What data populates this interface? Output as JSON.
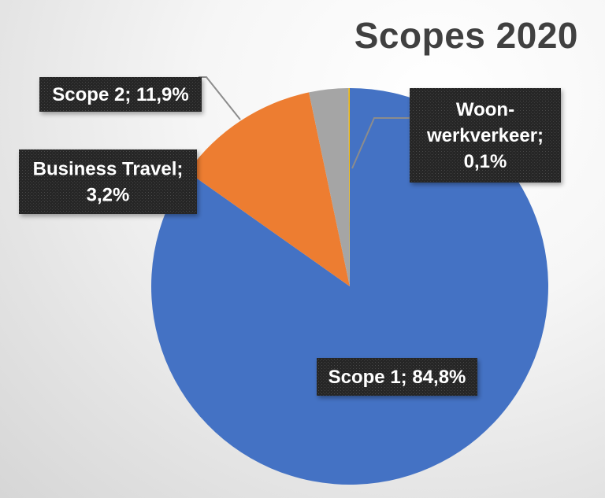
{
  "chart_data": {
    "type": "pie",
    "title": "Scopes 2020",
    "slices": [
      {
        "name": "Scope 1",
        "value": 84.8,
        "label": "Scope 1; 84,8%",
        "color": "#4472C4"
      },
      {
        "name": "Scope 2",
        "value": 11.9,
        "label": "Scope 2; 11,9%",
        "color": "#ED7D31"
      },
      {
        "name": "Business Travel",
        "value": 3.2,
        "label": "Business Travel;\n3,2%",
        "color": "#A5A5A5"
      },
      {
        "name": "Woon-werkverkeer",
        "value": 0.1,
        "label": "Woon-\nwerkverkeer;\n0,1%",
        "color": "#FFC000"
      }
    ],
    "label_style": "dark callouts with leader lines",
    "legend": "none"
  }
}
